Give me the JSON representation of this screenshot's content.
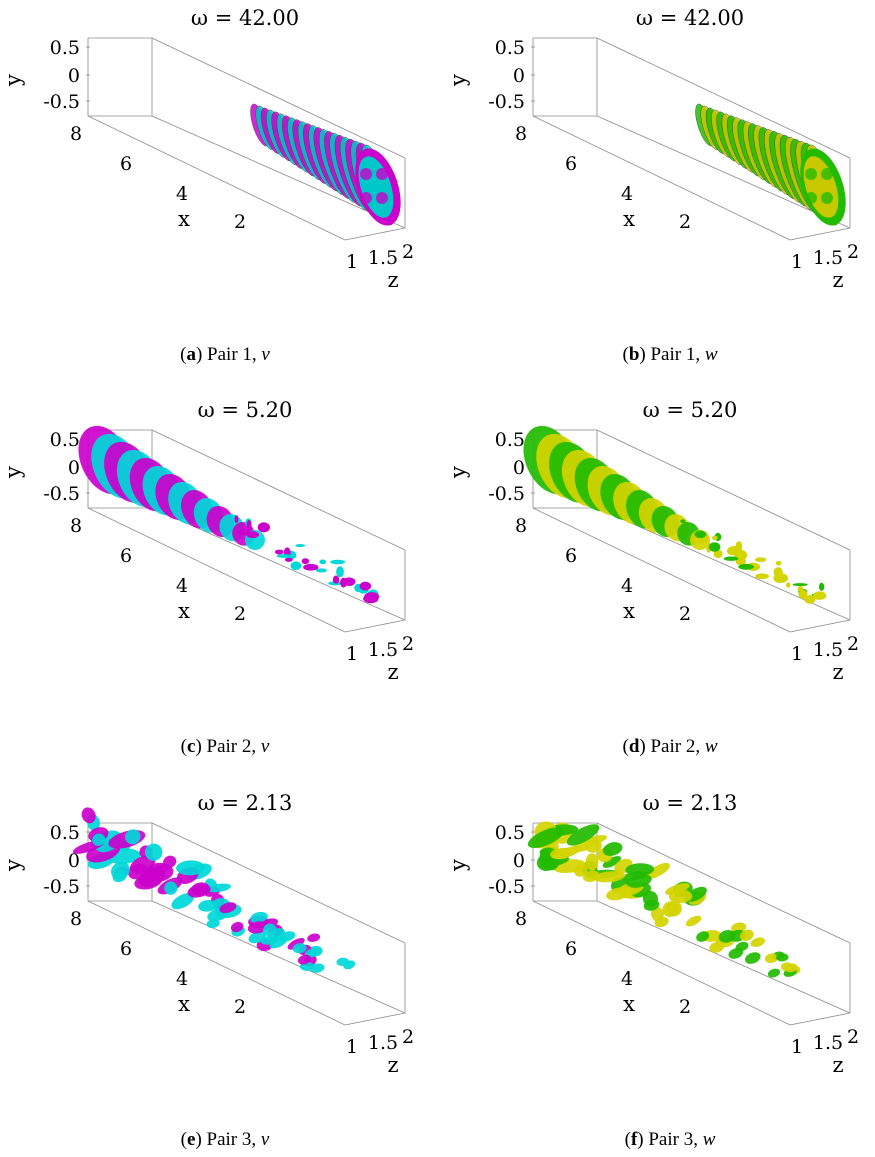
{
  "figure": {
    "panels": [
      {
        "id": "a",
        "title": "ω = 42.00",
        "caption_letter": "a",
        "caption_text": " Pair 1, ",
        "caption_var": "v",
        "colors": [
          "#00c8c8",
          "#cc00cc"
        ],
        "pattern": "rings"
      },
      {
        "id": "b",
        "title": "ω = 42.00",
        "caption_letter": "b",
        "caption_text": " Pair 1, ",
        "caption_var": "w",
        "colors": [
          "#c8c800",
          "#22bb00"
        ],
        "pattern": "rings"
      },
      {
        "id": "c",
        "title": "ω = 5.20",
        "caption_letter": "c",
        "caption_text": " Pair 2, ",
        "caption_var": "v",
        "colors": [
          "#00d8d8",
          "#cc00cc"
        ],
        "pattern": "bands"
      },
      {
        "id": "d",
        "title": "ω = 5.20",
        "caption_letter": "d",
        "caption_text": " Pair 2, ",
        "caption_var": "w",
        "colors": [
          "#d4d400",
          "#22bb00"
        ],
        "pattern": "bands"
      },
      {
        "id": "e",
        "title": "ω = 2.13",
        "caption_letter": "e",
        "caption_text": " Pair 3, ",
        "caption_var": "v",
        "colors": [
          "#00d8d8",
          "#cc00cc"
        ],
        "pattern": "blobs"
      },
      {
        "id": "f",
        "title": "ω = 2.13",
        "caption_letter": "f",
        "caption_text": " Pair 3, ",
        "caption_var": "w",
        "colors": [
          "#d4d400",
          "#22bb00"
        ],
        "pattern": "blobs"
      }
    ],
    "axes": {
      "y_label": "y",
      "x_label": "x",
      "z_label": "z",
      "y_ticks": [
        "0.5",
        "0",
        "-0.5"
      ],
      "x_ticks": [
        "8",
        "6",
        "4",
        "2"
      ],
      "z_ticks": [
        "1",
        "1.5",
        "2"
      ]
    }
  }
}
